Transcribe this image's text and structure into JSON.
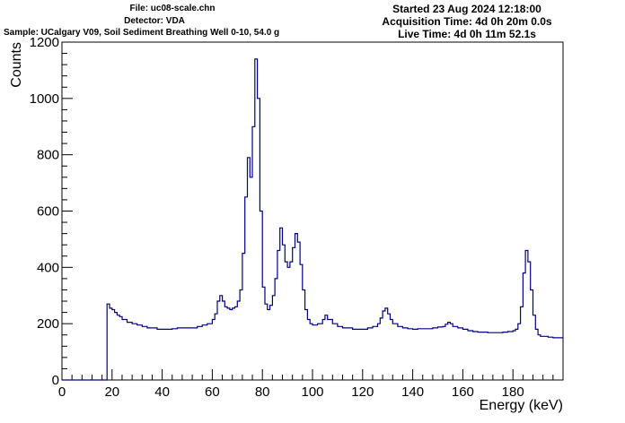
{
  "header": {
    "file": "File: uc08-scale.chn",
    "detector": "Detector: VDA",
    "sample": "Sample: UCalgary V09, Soil Sediment Breathing Well 0-10, 54.0 g",
    "started": "Started 23 Aug 2024 12:18:00",
    "acquisition": "Acquisition Time: 4d 0h 20m 0.0s",
    "live": "Live Time: 4d 0h 11m 52.1s"
  },
  "colors": {
    "line": "#000080",
    "axis": "#000000"
  },
  "chart_data": {
    "type": "line",
    "title": "",
    "xlabel": "Energy (keV)",
    "ylabel": "Counts",
    "xlim": [
      0,
      200
    ],
    "ylim": [
      0,
      1200
    ],
    "x_ticks": [
      0,
      20,
      40,
      60,
      80,
      100,
      120,
      140,
      160,
      180
    ],
    "y_ticks": [
      0,
      200,
      400,
      600,
      800,
      1000,
      1200
    ],
    "grid": false,
    "series": [
      {
        "name": "",
        "points": [
          [
            0,
            0
          ],
          [
            17.5,
            0
          ],
          [
            18,
            270
          ],
          [
            19,
            255
          ],
          [
            20,
            250
          ],
          [
            21,
            240
          ],
          [
            22,
            230
          ],
          [
            23,
            225
          ],
          [
            24,
            215
          ],
          [
            25,
            215
          ],
          [
            26,
            205
          ],
          [
            28,
            200
          ],
          [
            30,
            195
          ],
          [
            32,
            190
          ],
          [
            34,
            185
          ],
          [
            36,
            185
          ],
          [
            38,
            180
          ],
          [
            40,
            180
          ],
          [
            42,
            180
          ],
          [
            44,
            182
          ],
          [
            46,
            185
          ],
          [
            48,
            185
          ],
          [
            50,
            185
          ],
          [
            52,
            185
          ],
          [
            54,
            190
          ],
          [
            56,
            195
          ],
          [
            58,
            200
          ],
          [
            60,
            215
          ],
          [
            61,
            235
          ],
          [
            62,
            280
          ],
          [
            63,
            300
          ],
          [
            64,
            280
          ],
          [
            65,
            260
          ],
          [
            66,
            255
          ],
          [
            67,
            250
          ],
          [
            68,
            255
          ],
          [
            69,
            260
          ],
          [
            70,
            280
          ],
          [
            71,
            320
          ],
          [
            72,
            450
          ],
          [
            73,
            650
          ],
          [
            74,
            790
          ],
          [
            75,
            720
          ],
          [
            76,
            900
          ],
          [
            77,
            1140
          ],
          [
            78,
            1000
          ],
          [
            79,
            600
          ],
          [
            80,
            330
          ],
          [
            81,
            270
          ],
          [
            82,
            250
          ],
          [
            83,
            265
          ],
          [
            84,
            300
          ],
          [
            85,
            360
          ],
          [
            86,
            460
          ],
          [
            87,
            540
          ],
          [
            88,
            480
          ],
          [
            89,
            420
          ],
          [
            90,
            400
          ],
          [
            91,
            420
          ],
          [
            92,
            470
          ],
          [
            93,
            520
          ],
          [
            94,
            490
          ],
          [
            95,
            410
          ],
          [
            96,
            320
          ],
          [
            97,
            250
          ],
          [
            98,
            215
          ],
          [
            99,
            200
          ],
          [
            100,
            195
          ],
          [
            102,
            200
          ],
          [
            104,
            215
          ],
          [
            105,
            230
          ],
          [
            106,
            215
          ],
          [
            108,
            200
          ],
          [
            110,
            190
          ],
          [
            112,
            185
          ],
          [
            114,
            185
          ],
          [
            116,
            180
          ],
          [
            118,
            180
          ],
          [
            120,
            180
          ],
          [
            122,
            185
          ],
          [
            124,
            190
          ],
          [
            126,
            200
          ],
          [
            127,
            220
          ],
          [
            128,
            245
          ],
          [
            129,
            255
          ],
          [
            130,
            235
          ],
          [
            131,
            215
          ],
          [
            132,
            200
          ],
          [
            134,
            190
          ],
          [
            136,
            185
          ],
          [
            138,
            182
          ],
          [
            140,
            180
          ],
          [
            142,
            182
          ],
          [
            144,
            182
          ],
          [
            146,
            182
          ],
          [
            148,
            185
          ],
          [
            150,
            188
          ],
          [
            152,
            190
          ],
          [
            153,
            198
          ],
          [
            154,
            205
          ],
          [
            155,
            200
          ],
          [
            156,
            190
          ],
          [
            158,
            185
          ],
          [
            160,
            180
          ],
          [
            162,
            175
          ],
          [
            164,
            172
          ],
          [
            166,
            170
          ],
          [
            168,
            170
          ],
          [
            170,
            168
          ],
          [
            172,
            168
          ],
          [
            174,
            168
          ],
          [
            176,
            170
          ],
          [
            178,
            172
          ],
          [
            180,
            175
          ],
          [
            181,
            180
          ],
          [
            182,
            200
          ],
          [
            183,
            260
          ],
          [
            184,
            380
          ],
          [
            185,
            460
          ],
          [
            186,
            420
          ],
          [
            187,
            320
          ],
          [
            188,
            230
          ],
          [
            189,
            180
          ],
          [
            190,
            160
          ],
          [
            191,
            155
          ],
          [
            192,
            155
          ],
          [
            194,
            152
          ],
          [
            196,
            150
          ],
          [
            198,
            150
          ],
          [
            200,
            148
          ]
        ]
      }
    ]
  }
}
